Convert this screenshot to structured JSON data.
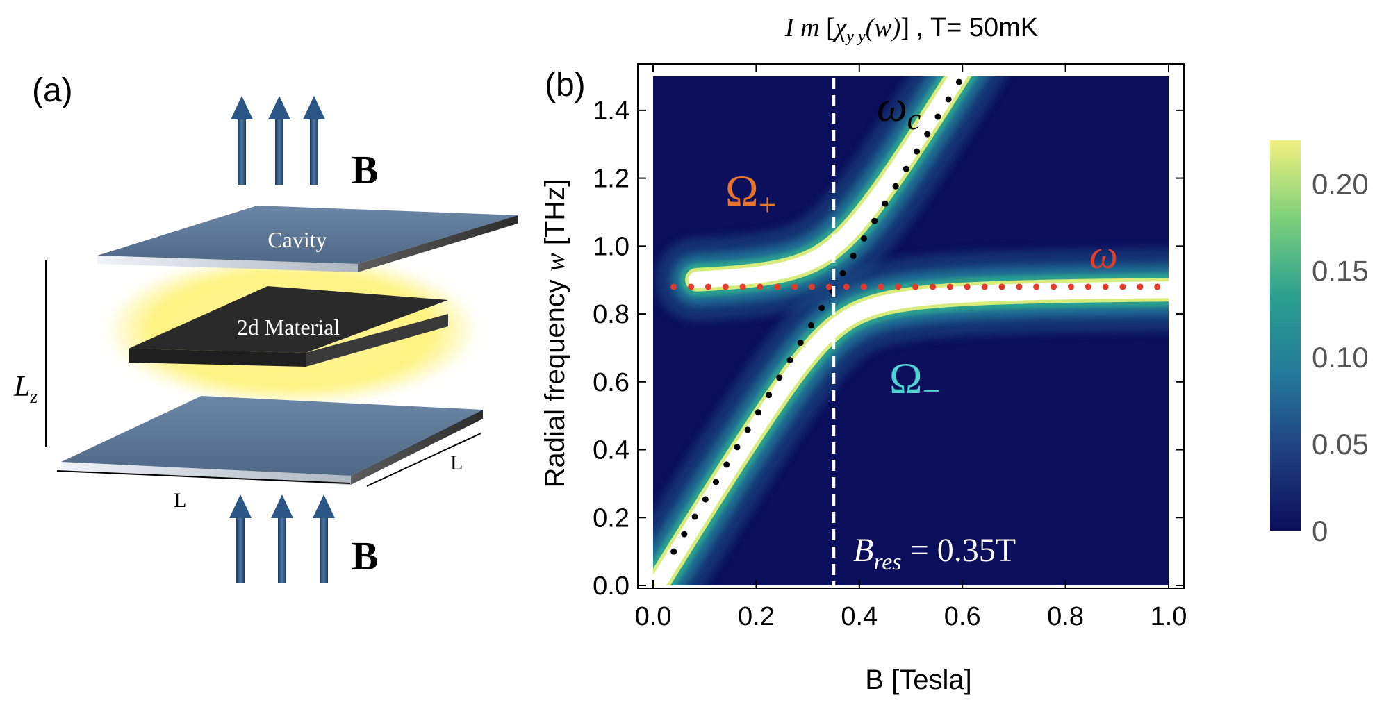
{
  "panel_a": {
    "label": "(a)",
    "field_label": "B",
    "cavity_label": "Cavity",
    "material_label": "2d Material",
    "height_symbol": "L",
    "height_subscript": "z",
    "width_label": "L",
    "depth_label": "L",
    "colors": {
      "plate": "#5a7390",
      "material": "#2a2a2a",
      "glow": "#fff27a",
      "arrow": "#27496e"
    }
  },
  "panel_b": {
    "label": "(b)",
    "title_lead": "I m",
    "title_chi": "χ",
    "title_sub": "y y",
    "title_arg": "(w)",
    "title_tail": ", T= 50mK",
    "annotations": {
      "omega_c": "ω",
      "omega_c_sub": "c",
      "omega_plus": "Ω",
      "omega_plus_sub": "+",
      "omega_minus": "Ω",
      "omega_minus_sub": "−",
      "omega_cavity": "ω",
      "bres_symbol": "B",
      "bres_sub": "res",
      "bres_value": "= 0.35T"
    },
    "colorbar": {
      "ticks": [
        "0.20",
        "0.15",
        "0.10",
        "0.05",
        "0"
      ],
      "tick_values": [
        0.2,
        0.15,
        0.1,
        0.05,
        0
      ],
      "min": 0,
      "max": 0.225,
      "colors": [
        "#0b0f5c",
        "#1f3f80",
        "#23799a",
        "#2aa08f",
        "#7cd07a",
        "#f2f07e"
      ]
    }
  },
  "chart_data": {
    "type": "heatmap",
    "title": "Im[χyy(w)] , T= 50mK",
    "xlabel": "B [Tesla]",
    "ylabel_prefix": "Radial frequency",
    "ylabel_var": "w",
    "ylabel_unit": "[THz]",
    "xlim": [
      0.0,
      1.0
    ],
    "ylim": [
      0.0,
      1.5
    ],
    "x_ticks": [
      "0.0",
      "0.2",
      "0.4",
      "0.6",
      "0.8",
      "1.0"
    ],
    "x_tick_values": [
      0.0,
      0.2,
      0.4,
      0.6,
      0.8,
      1.0
    ],
    "y_ticks": [
      "0.0",
      "0.2",
      "0.4",
      "0.6",
      "0.8",
      "1.0",
      "1.2",
      "1.4"
    ],
    "y_tick_values": [
      0.0,
      0.2,
      0.4,
      0.6,
      0.8,
      1.0,
      1.2,
      1.4
    ],
    "cavity_frequency_thz": 0.88,
    "cyclotron_slope_thz_per_tesla": 2.5,
    "resonance_field_tesla": 0.35,
    "coupling_g_thz": 0.12,
    "colorbar_range": [
      0,
      0.225
    ],
    "series": [
      {
        "name": "ω_c (cyclotron, dotted)",
        "x": [
          0.04,
          0.1,
          0.2,
          0.3,
          0.35,
          0.4,
          0.5,
          0.6
        ],
        "y": [
          0.1,
          0.25,
          0.5,
          0.75,
          0.875,
          1.0,
          1.25,
          1.5
        ]
      },
      {
        "name": "ω (cavity, dotted)",
        "x": [
          0.04,
          0.2,
          0.4,
          0.6,
          0.8,
          1.0
        ],
        "y": [
          0.88,
          0.88,
          0.88,
          0.88,
          0.88,
          0.88
        ]
      },
      {
        "name": "Ω+ (upper polariton)",
        "x": [
          0.08,
          0.2,
          0.3,
          0.35,
          0.4,
          0.5,
          0.6
        ],
        "y": [
          0.92,
          0.95,
          1.0,
          1.05,
          1.13,
          1.3,
          1.52
        ]
      },
      {
        "name": "Ω− (lower polariton)",
        "x": [
          0.02,
          0.1,
          0.2,
          0.3,
          0.35,
          0.4,
          0.6,
          1.0
        ],
        "y": [
          0.05,
          0.25,
          0.48,
          0.67,
          0.74,
          0.79,
          0.84,
          0.87
        ]
      }
    ]
  }
}
